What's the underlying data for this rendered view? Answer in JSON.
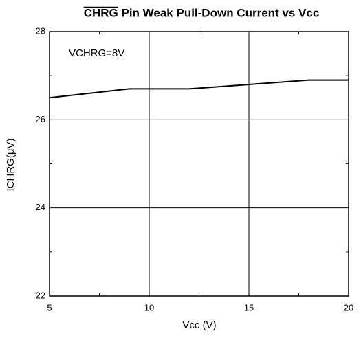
{
  "chart_data": {
    "type": "line",
    "title": "CHRG Pin Weak Pull-Down Current vs Vcc",
    "annotation": "VCHRG=8V",
    "x_label": "Vcc (V)",
    "y_label": "ICHRG(μV)",
    "x": [
      5,
      9,
      12,
      15,
      18,
      20
    ],
    "series": [
      {
        "name": "ICHRG",
        "color": "#000000",
        "values": [
          26.5,
          26.7,
          26.7,
          26.8,
          26.9,
          26.9
        ]
      }
    ],
    "xlim": [
      5,
      20
    ],
    "xticks": [
      5,
      10,
      15,
      20
    ],
    "ylim": [
      22,
      28
    ],
    "yticks": [
      22,
      24,
      26,
      28
    ],
    "grid": true
  }
}
